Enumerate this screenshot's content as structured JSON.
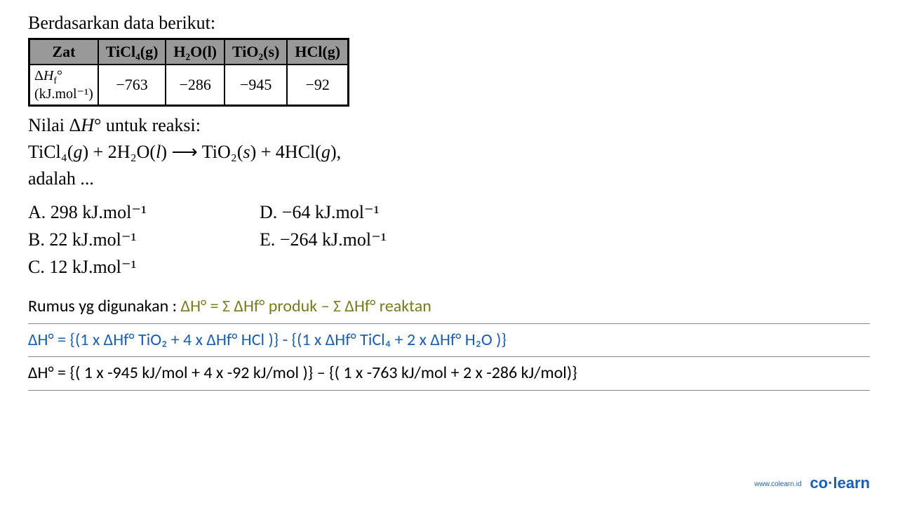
{
  "title": "Berdasarkan data berikut:",
  "table": {
    "header_bg": "#999999",
    "border_color": "#000000",
    "headers": {
      "zat": "Zat",
      "ticl4": "TiCl₄(g)",
      "h2o": "H₂O(l)",
      "tio2": "TiO₂(s)",
      "hcl": "HCl(g)"
    },
    "row_label_html": "Δ<i>H</i><sub>f</sub>°<br>(kJ.mol⁻¹)",
    "values": {
      "ticl4": "−763",
      "h2o": "−286",
      "tio2": "−945",
      "hcl": "−92"
    }
  },
  "question": {
    "line1_html": "Nilai Δ<i>H</i>° untuk reaksi:",
    "reaction_html": "TiCl₄(<i>g</i>) + 2H₂O(<i>l</i>) ⟶ TiO₂(<i>s</i>) +  4HCl(<i>g</i>),",
    "line3": "adalah ..."
  },
  "options": {
    "a": "A.   298 kJ.mol⁻¹",
    "b": "B.   22 kJ.mol⁻¹",
    "c": "C.   12 kJ.mol⁻¹",
    "d": "D.   −64 kJ.mol⁻¹",
    "e": "E.   −264 kJ.mol⁻¹"
  },
  "formulas": {
    "line1_prefix": "Rumus yg digunakan : ",
    "line1_olive": "ΔH° = Σ ΔHf° produk – Σ ΔHf° reaktan",
    "line2_blue": "ΔH° = {(1 x ΔHf° TiO₂ + 4 x ΔHf° HCl )} - {(1 x ΔHf° TiCl₄ + 2  x ΔHf° H₂O )}",
    "line3": "ΔH° = {( 1 x -945 kJ/mol + 4 x -92 kJ/mol )} – {( 1 x -763 kJ/mol + 2 x -286 kJ/mol)}"
  },
  "footer": {
    "url": "www.colearn.id",
    "brand": "co·learn"
  },
  "colors": {
    "olive": "#7a7a1f",
    "blue": "#1a5fb4",
    "header_bg": "#999999",
    "black": "#000000"
  }
}
